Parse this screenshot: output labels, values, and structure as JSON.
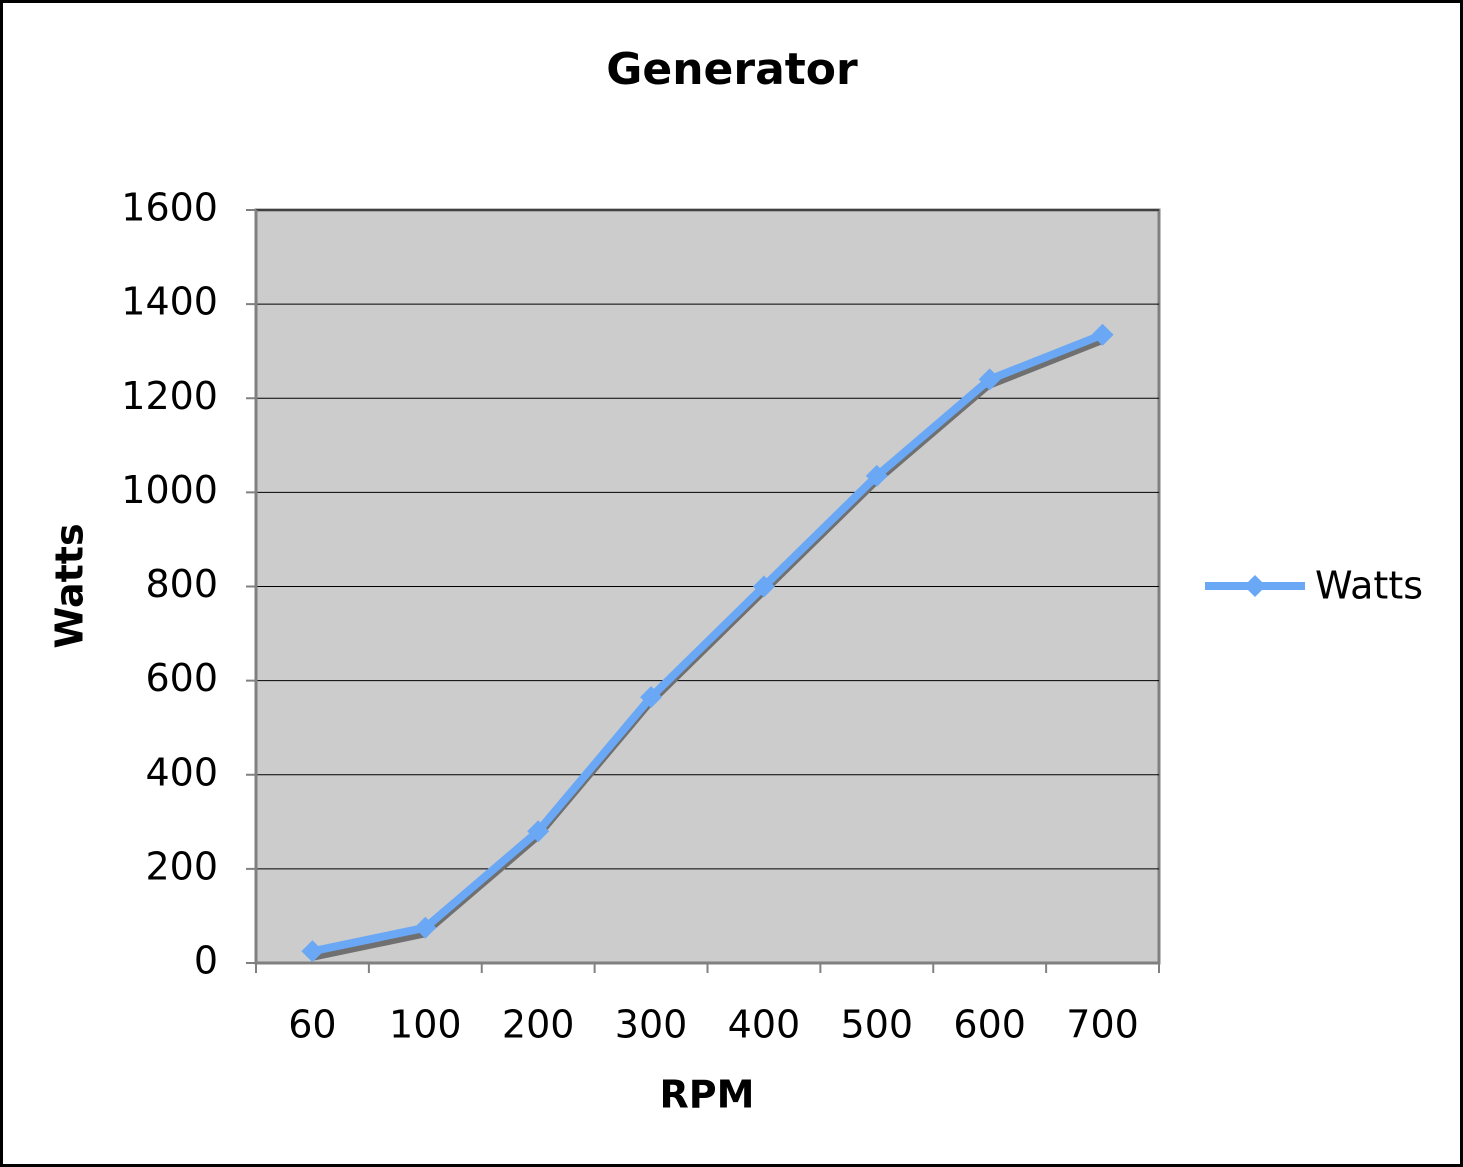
{
  "chart_data": {
    "type": "line",
    "title": "Generator",
    "x_label": "RPM",
    "y_label": "Watts",
    "categories": [
      "60",
      "100",
      "200",
      "300",
      "400",
      "500",
      "600",
      "700"
    ],
    "series": [
      {
        "name": "Watts",
        "color": "#6aa8f5",
        "values": [
          25,
          75,
          280,
          565,
          800,
          1035,
          1240,
          1335
        ]
      }
    ],
    "ylim": [
      0,
      1600
    ],
    "yticks": [
      0,
      200,
      400,
      600,
      800,
      1000,
      1200,
      1400,
      1600
    ],
    "grid": true,
    "legend": "right"
  }
}
